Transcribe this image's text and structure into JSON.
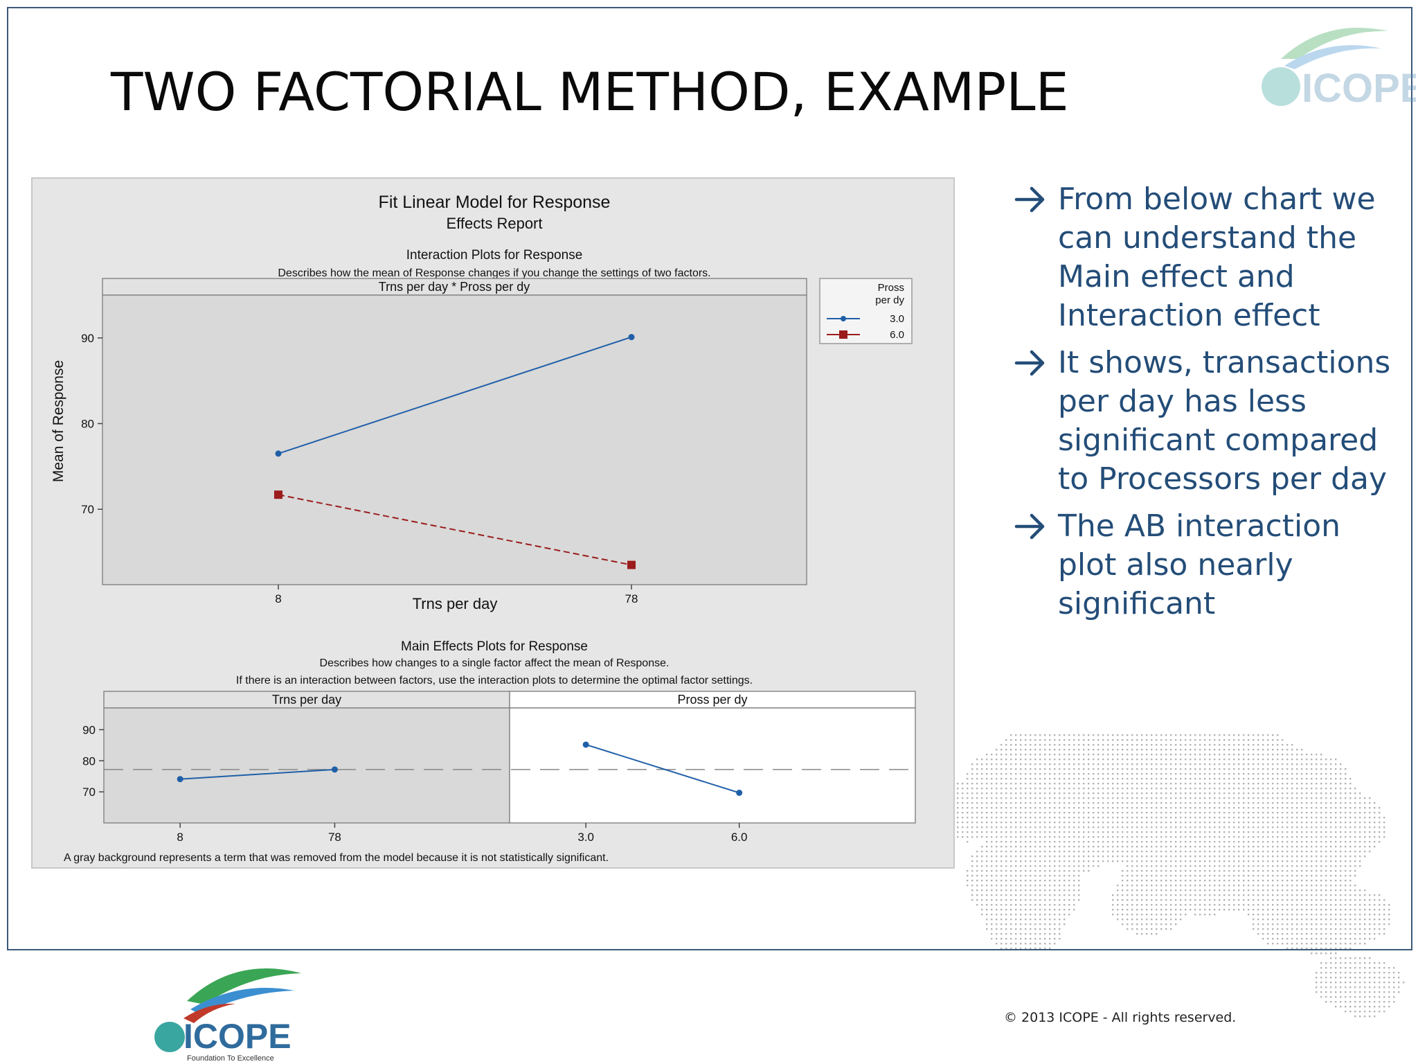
{
  "slide": {
    "title": "TWO FACTORIAL METHOD, EXAMPLE",
    "bullets": [
      "From below chart we can understand the Main effect and Interaction effect",
      "It shows, transactions per day has less significant compared to Processors per day",
      "The AB interaction plot also nearly significant"
    ],
    "copyright": "©  2013 ICOPE - All rights reserved.",
    "logo": {
      "name": "ICOPE",
      "tagline": "Foundation To Excellence"
    },
    "colors": {
      "accent": "#244d78",
      "series_blue": "#1f5fa8",
      "series_red": "#9b1c1c",
      "panel": "#e6e6e6"
    }
  },
  "chart_data": [
    {
      "type": "line",
      "report_title": "Fit Linear Model for Response",
      "report_subtitle": "Effects Report",
      "title": "Interaction Plots for Response",
      "description": "Describes how the mean of Response changes if you change the settings of two factors.",
      "panel_label": "Trns per day * Pross per dy",
      "xlabel": "Trns per day",
      "ylabel": "Mean of Response",
      "categories": [
        "8",
        "78"
      ],
      "yticks": [
        "70",
        "80",
        "90"
      ],
      "ylim": [
        61.2,
        95
      ],
      "legend_title": "Pross per dy",
      "series": [
        {
          "name": "3.0",
          "values": [
            76.5,
            90.1
          ],
          "color": "#1f5fa8",
          "marker": "circle",
          "dash": false
        },
        {
          "name": "6.0",
          "values": [
            71.7,
            63.5
          ],
          "color": "#9b1c1c",
          "marker": "square",
          "dash": true
        }
      ],
      "legend_placement": "right",
      "grid": false
    },
    {
      "type": "line",
      "title": "Main Effects Plots for Response",
      "description1": "Describes how changes to a single factor affect the mean of Response.",
      "description2": "If there is an interaction between factors, use the interaction plots to determine the optimal factor settings.",
      "yticks": [
        "70",
        "80",
        "90"
      ],
      "ylim": [
        60,
        97
      ],
      "reference_mean": 77.2,
      "panels": [
        {
          "label": "Trns per day",
          "categories": [
            "8",
            "78"
          ],
          "values": [
            74.1,
            77.2
          ],
          "gray": true
        },
        {
          "label": "Pross per dy",
          "categories": [
            "3.0",
            "6.0"
          ],
          "values": [
            85.2,
            69.7
          ],
          "gray": false
        }
      ],
      "footnote": "A gray background represents a term that was removed from the model because it is not statistically significant.",
      "grid": false
    }
  ]
}
